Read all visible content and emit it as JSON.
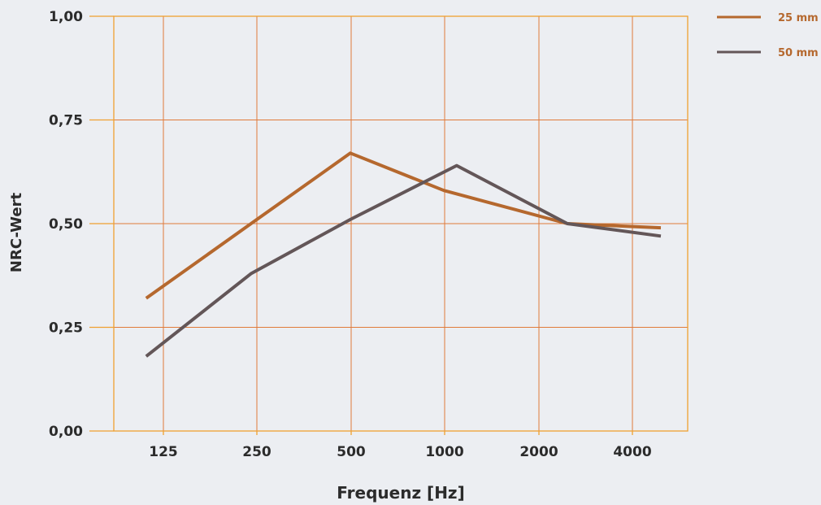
{
  "chart_data": {
    "type": "line",
    "xlabel": "Frequenz [Hz]",
    "ylabel": "NRC-Wert",
    "categories": [
      "125",
      "250",
      "500",
      "1000",
      "2000",
      "4000"
    ],
    "y_ticks": [
      "0,00",
      "0,25",
      "0,50",
      "0,75",
      "1,00"
    ],
    "ylim": [
      0,
      1
    ],
    "grid": true,
    "legend_position": "top-right",
    "series": [
      {
        "name": "25 mm",
        "color": "#b5682e",
        "points": [
          {
            "x": 110,
            "y": 0.32
          },
          {
            "x": 250,
            "y": 0.51
          },
          {
            "x": 500,
            "y": 0.67
          },
          {
            "x": 1000,
            "y": 0.58
          },
          {
            "x": 2500,
            "y": 0.5
          },
          {
            "x": 5000,
            "y": 0.49
          }
        ]
      },
      {
        "name": "50 mm",
        "color": "#635658",
        "points": [
          {
            "x": 110,
            "y": 0.18
          },
          {
            "x": 240,
            "y": 0.38
          },
          {
            "x": 500,
            "y": 0.51
          },
          {
            "x": 1100,
            "y": 0.64
          },
          {
            "x": 2500,
            "y": 0.5
          },
          {
            "x": 5000,
            "y": 0.47
          }
        ]
      }
    ]
  },
  "colors": {
    "background": "#eceef2",
    "frame": "#f0a030",
    "grid": "#e07a3a",
    "text": "#2b2b2b",
    "legend_text": "#b5682e"
  }
}
